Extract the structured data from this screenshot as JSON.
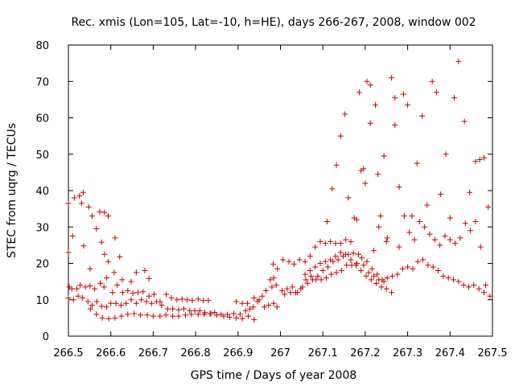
{
  "chart_data": {
    "type": "scatter",
    "title": "Rec. xmis (Lon=105, Lat=-10, h=HE), days 266-267, 2008, window 002",
    "xlabel": "GPS time / Days of year 2008",
    "ylabel": "STEC from uqrg / TECUs",
    "xlim": [
      266.5,
      267.5
    ],
    "ylim": [
      0,
      80
    ],
    "xticks": [
      266.5,
      266.6,
      266.7,
      266.8,
      266.9,
      267.0,
      267.1,
      267.2,
      267.3,
      267.4,
      267.5
    ],
    "xtick_labels": [
      "266.5",
      "266.6",
      "266.7",
      "266.8",
      "266.9",
      "267",
      "267.1",
      "267.2",
      "267.3",
      "267.4",
      "267.5"
    ],
    "yticks": [
      0,
      10,
      20,
      30,
      40,
      50,
      60,
      70,
      80
    ],
    "ytick_labels": [
      "0",
      "10",
      "20",
      "30",
      "40",
      "50",
      "60",
      "70",
      "80"
    ],
    "grid": false,
    "marker": "+",
    "color": "#cc0000",
    "series": [
      {
        "points": [
          [
            266.5,
            36.5
          ],
          [
            266.514,
            38.0
          ],
          [
            266.526,
            38.5
          ],
          [
            266.535,
            39.5
          ],
          [
            266.531,
            36.5
          ],
          [
            266.548,
            35.5
          ],
          [
            266.556,
            33.0
          ],
          [
            266.566,
            29.5
          ],
          [
            266.574,
            34.2
          ],
          [
            266.585,
            34.0
          ],
          [
            266.594,
            33.0
          ],
          [
            266.578,
            25.8
          ],
          [
            266.61,
            27.0
          ],
          [
            266.585,
            22.5
          ],
          [
            266.594,
            20.5
          ],
          [
            266.621,
            21.8
          ],
          [
            266.5,
            23.0
          ],
          [
            266.51,
            27.5
          ],
          [
            266.536,
            24.8
          ],
          [
            266.551,
            18.5
          ],
          [
            266.608,
            17.5
          ],
          [
            266.627,
            15.5
          ],
          [
            266.648,
            15.0
          ],
          [
            266.66,
            17.5
          ],
          [
            266.68,
            18.0
          ],
          [
            266.69,
            15.8
          ],
          [
            266.502,
            13.5
          ],
          [
            266.508,
            13.0
          ],
          [
            266.52,
            13.0
          ],
          [
            266.528,
            14.0
          ],
          [
            266.54,
            13.5
          ],
          [
            266.551,
            13.8
          ],
          [
            266.562,
            13.0
          ],
          [
            266.575,
            14.5
          ],
          [
            266.584,
            13.5
          ],
          [
            266.59,
            16.0
          ],
          [
            266.604,
            12.0
          ],
          [
            266.615,
            14.0
          ],
          [
            266.628,
            12.0
          ],
          [
            266.64,
            12.5
          ],
          [
            266.652,
            11.8
          ],
          [
            266.664,
            12.0
          ],
          [
            266.676,
            12.2
          ],
          [
            266.69,
            11.0
          ],
          [
            266.702,
            11.5
          ],
          [
            266.716,
            9.5
          ],
          [
            266.731,
            11.5
          ],
          [
            266.743,
            10.5
          ],
          [
            266.756,
            10.0
          ],
          [
            266.768,
            10.2
          ],
          [
            266.78,
            10.0
          ],
          [
            266.792,
            9.8
          ],
          [
            266.806,
            10.2
          ],
          [
            266.818,
            9.8
          ],
          [
            266.83,
            9.8
          ],
          [
            266.5,
            10.5
          ],
          [
            266.512,
            10.0
          ],
          [
            266.523,
            11.0
          ],
          [
            266.533,
            10.5
          ],
          [
            266.546,
            9.5
          ],
          [
            266.556,
            8.5
          ],
          [
            266.567,
            9.5
          ],
          [
            266.578,
            8.2
          ],
          [
            266.59,
            8.0
          ],
          [
            266.6,
            9.0
          ],
          [
            266.612,
            9.0
          ],
          [
            266.624,
            8.5
          ],
          [
            266.636,
            9.0
          ],
          [
            266.648,
            10.0
          ],
          [
            266.66,
            9.0
          ],
          [
            266.672,
            10.0
          ],
          [
            266.684,
            9.5
          ],
          [
            266.696,
            9.0
          ],
          [
            266.708,
            9.5
          ],
          [
            266.72,
            8.5
          ],
          [
            266.734,
            7.5
          ],
          [
            266.746,
            7.5
          ],
          [
            266.76,
            7.2
          ],
          [
            266.772,
            7.5
          ],
          [
            266.786,
            7.0
          ],
          [
            266.798,
            7.0
          ],
          [
            266.81,
            7.0
          ],
          [
            266.822,
            6.5
          ],
          [
            266.834,
            6.2
          ],
          [
            266.552,
            7.5
          ],
          [
            266.566,
            6.0
          ],
          [
            266.58,
            5.0
          ],
          [
            266.595,
            4.8
          ],
          [
            266.61,
            5.0
          ],
          [
            266.625,
            5.5
          ],
          [
            266.64,
            6.0
          ],
          [
            266.655,
            6.2
          ],
          [
            266.67,
            5.8
          ],
          [
            266.686,
            5.8
          ],
          [
            266.7,
            5.5
          ],
          [
            266.716,
            5.5
          ],
          [
            266.73,
            5.8
          ],
          [
            266.746,
            5.5
          ],
          [
            266.76,
            5.5
          ],
          [
            266.776,
            5.8
          ],
          [
            266.79,
            6.0
          ],
          [
            266.806,
            6.0
          ],
          [
            266.82,
            6.0
          ],
          [
            266.836,
            6.2
          ],
          [
            266.85,
            5.8
          ],
          [
            266.866,
            5.5
          ],
          [
            266.88,
            5.2
          ],
          [
            266.896,
            5.0
          ],
          [
            266.91,
            4.8
          ],
          [
            266.924,
            5.5
          ],
          [
            266.938,
            4.5
          ],
          [
            266.845,
            6.5
          ],
          [
            266.86,
            6.0
          ],
          [
            266.875,
            6.0
          ],
          [
            266.89,
            6.2
          ],
          [
            266.905,
            6.0
          ],
          [
            266.918,
            7.0
          ],
          [
            266.928,
            7.5
          ],
          [
            266.936,
            8.0
          ],
          [
            266.946,
            9.5
          ],
          [
            266.957,
            11.0
          ],
          [
            266.966,
            12.5
          ],
          [
            266.976,
            15.5
          ],
          [
            266.984,
            16.0
          ],
          [
            266.993,
            18.5
          ],
          [
            266.896,
            9.5
          ],
          [
            266.91,
            9.0
          ],
          [
            266.922,
            9.0
          ],
          [
            266.938,
            10.5
          ],
          [
            266.95,
            10.0
          ],
          [
            266.962,
            8.0
          ],
          [
            266.972,
            8.5
          ],
          [
            266.984,
            9.0
          ],
          [
            266.992,
            8.0
          ],
          [
            266.98,
            13.5
          ],
          [
            266.99,
            14.0
          ],
          [
            266.983,
            19.8
          ],
          [
            267.006,
            21.0
          ],
          [
            267.02,
            20.5
          ],
          [
            267.032,
            19.8
          ],
          [
            267.045,
            21.0
          ],
          [
            267.058,
            20.5
          ],
          [
            267.07,
            22.0
          ],
          [
            267.082,
            24.5
          ],
          [
            267.094,
            26.0
          ],
          [
            267.106,
            25.5
          ],
          [
            267.118,
            26.0
          ],
          [
            267.13,
            25.5
          ],
          [
            267.142,
            25.5
          ],
          [
            267.154,
            26.5
          ],
          [
            267.166,
            26.0
          ],
          [
            267.004,
            12.5
          ],
          [
            267.016,
            13.0
          ],
          [
            267.028,
            13.5
          ],
          [
            267.04,
            12.0
          ],
          [
            267.052,
            13.5
          ],
          [
            267.064,
            14.5
          ],
          [
            267.076,
            15.5
          ],
          [
            267.088,
            16.5
          ],
          [
            267.1,
            18.0
          ],
          [
            267.112,
            19.0
          ],
          [
            267.124,
            20.5
          ],
          [
            267.136,
            21.0
          ],
          [
            267.148,
            22.0
          ],
          [
            267.16,
            22.5
          ],
          [
            267.172,
            22.8
          ],
          [
            267.184,
            22.5
          ],
          [
            267.196,
            19.5
          ],
          [
            267.208,
            17.5
          ],
          [
            267.22,
            16.5
          ],
          [
            267.232,
            15.5
          ],
          [
            267.244,
            15.0
          ],
          [
            267.01,
            11.5
          ],
          [
            267.024,
            12.0
          ],
          [
            267.036,
            12.0
          ],
          [
            267.048,
            13.0
          ],
          [
            267.06,
            15.5
          ],
          [
            267.072,
            16.5
          ],
          [
            267.084,
            15.5
          ],
          [
            267.096,
            15.5
          ],
          [
            267.108,
            16.0
          ],
          [
            267.12,
            17.0
          ],
          [
            267.132,
            17.5
          ],
          [
            267.144,
            18.0
          ],
          [
            267.156,
            19.5
          ],
          [
            267.168,
            19.5
          ],
          [
            267.18,
            20.0
          ],
          [
            267.192,
            21.5
          ],
          [
            267.204,
            20.5
          ],
          [
            267.216,
            18.5
          ],
          [
            267.228,
            17.0
          ],
          [
            267.24,
            15.5
          ],
          [
            267.252,
            16.0
          ],
          [
            267.264,
            16.5
          ],
          [
            267.276,
            17.0
          ],
          [
            267.288,
            18.5
          ],
          [
            267.3,
            19.0
          ],
          [
            267.312,
            18.5
          ],
          [
            267.324,
            20.5
          ],
          [
            267.336,
            21.0
          ],
          [
            267.348,
            19.5
          ],
          [
            267.36,
            19.0
          ],
          [
            267.372,
            18.0
          ],
          [
            267.384,
            16.5
          ],
          [
            267.396,
            16.0
          ],
          [
            267.408,
            15.5
          ],
          [
            267.42,
            15.0
          ],
          [
            267.432,
            14.0
          ],
          [
            267.444,
            13.5
          ],
          [
            267.456,
            14.0
          ],
          [
            267.468,
            13.0
          ],
          [
            267.48,
            12.0
          ],
          [
            267.494,
            11.0
          ],
          [
            267.058,
            17.0
          ],
          [
            267.07,
            18.0
          ],
          [
            267.082,
            19.0
          ],
          [
            267.094,
            20.0
          ],
          [
            267.106,
            20.5
          ],
          [
            267.118,
            21.0
          ],
          [
            267.13,
            22.0
          ],
          [
            267.142,
            23.0
          ],
          [
            267.154,
            22.5
          ],
          [
            267.166,
            21.0
          ],
          [
            267.178,
            19.5
          ],
          [
            267.19,
            18.0
          ],
          [
            267.202,
            16.5
          ],
          [
            267.214,
            15.5
          ],
          [
            267.226,
            14.5
          ],
          [
            267.238,
            13.5
          ],
          [
            267.25,
            13.0
          ],
          [
            267.262,
            12.0
          ],
          [
            267.11,
            31.5
          ],
          [
            267.122,
            40.5
          ],
          [
            267.132,
            47.0
          ],
          [
            267.142,
            55.0
          ],
          [
            267.152,
            61.0
          ],
          [
            267.16,
            38.0
          ],
          [
            267.174,
            32.5
          ],
          [
            267.186,
            67.0
          ],
          [
            267.196,
            46.0
          ],
          [
            267.204,
            70.0
          ],
          [
            267.212,
            69.0
          ],
          [
            267.212,
            58.5
          ],
          [
            267.224,
            63.5
          ],
          [
            267.23,
            44.5
          ],
          [
            267.236,
            33.0
          ],
          [
            267.244,
            49.5
          ],
          [
            267.252,
            27.0
          ],
          [
            267.262,
            71.0
          ],
          [
            267.27,
            65.5
          ],
          [
            267.27,
            58.0
          ],
          [
            267.28,
            41.0
          ],
          [
            267.29,
            66.5
          ],
          [
            267.3,
            63.5
          ],
          [
            267.31,
            33.0
          ],
          [
            267.322,
            47.5
          ],
          [
            267.334,
            60.5
          ],
          [
            267.346,
            36.0
          ],
          [
            267.358,
            70.0
          ],
          [
            267.368,
            67.0
          ],
          [
            267.378,
            39.0
          ],
          [
            267.39,
            50.0
          ],
          [
            267.4,
            32.5
          ],
          [
            267.41,
            65.5
          ],
          [
            267.42,
            75.5
          ],
          [
            267.434,
            59.0
          ],
          [
            267.446,
            39.5
          ],
          [
            267.46,
            48.0
          ],
          [
            267.47,
            48.5
          ],
          [
            267.48,
            49.0
          ],
          [
            267.49,
            35.5
          ],
          [
            267.2,
            42.0
          ],
          [
            267.19,
            45.5
          ],
          [
            267.22,
            23.5
          ],
          [
            267.25,
            26.0
          ],
          [
            267.18,
            32.0
          ],
          [
            267.232,
            30.0
          ],
          [
            267.28,
            24.5
          ],
          [
            267.292,
            33.0
          ],
          [
            267.304,
            28.5
          ],
          [
            267.316,
            26.5
          ],
          [
            267.328,
            31.5
          ],
          [
            267.34,
            30.0
          ],
          [
            267.352,
            28.0
          ],
          [
            267.364,
            26.5
          ],
          [
            267.376,
            25.0
          ],
          [
            267.388,
            27.5
          ],
          [
            267.4,
            26.5
          ],
          [
            267.412,
            25.5
          ],
          [
            267.424,
            27.0
          ],
          [
            267.436,
            31.0
          ],
          [
            267.448,
            29.0
          ],
          [
            267.46,
            31.5
          ],
          [
            267.472,
            24.5
          ],
          [
            267.484,
            14.0
          ]
        ]
      }
    ]
  }
}
